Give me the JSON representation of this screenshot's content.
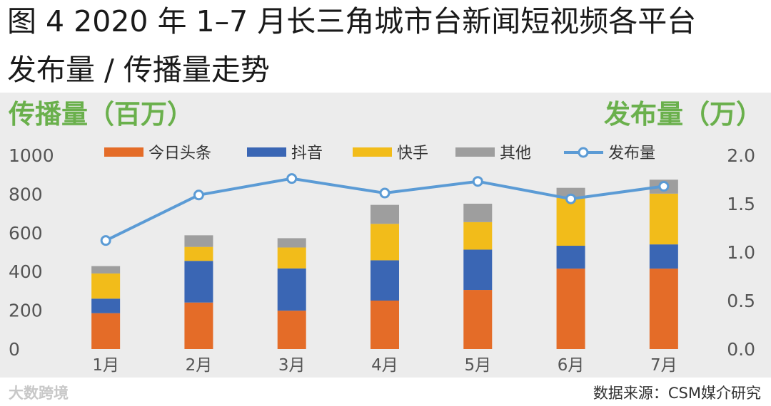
{
  "title_line1": "图 4 2020 年 1–7 月长三角城市台新闻短视频各平台",
  "title_line2": "发布量 / 传播量走势",
  "watermark": "大数跨境",
  "source": "数据来源：CSM媒介研究",
  "chart_data": {
    "type": "bar",
    "stacked": true,
    "categories": [
      "1月",
      "2月",
      "3月",
      "4月",
      "5月",
      "6月",
      "7月"
    ],
    "y_label_left": "传播量（百万）",
    "y_label_right": "发布量（万）",
    "ylim": [
      0,
      1000
    ],
    "ylim_right": [
      0,
      2.0
    ],
    "yticks": [
      "0",
      "200",
      "400",
      "600",
      "800",
      "1000"
    ],
    "yticks_right": [
      "0.0",
      "0.5",
      "1.0",
      "1.5",
      "2.0"
    ],
    "legend_position": "top",
    "series": [
      {
        "name": "今日头条",
        "color": "#e46c28",
        "values": [
          185,
          240,
          198,
          250,
          305,
          415,
          415
        ]
      },
      {
        "name": "抖音",
        "color": "#3a66b4",
        "values": [
          75,
          215,
          218,
          208,
          208,
          118,
          125
        ]
      },
      {
        "name": "快手",
        "color": "#f2bc1a",
        "values": [
          130,
          72,
          108,
          188,
          142,
          247,
          262
        ]
      },
      {
        "name": "其他",
        "color": "#9e9e9e",
        "values": [
          38,
          60,
          48,
          98,
          95,
          52,
          72
        ]
      }
    ],
    "line_series": {
      "name": "发布量",
      "color": "#5b9bd5",
      "axis": "right",
      "values": [
        1.12,
        1.59,
        1.76,
        1.61,
        1.73,
        1.55,
        1.68
      ]
    }
  }
}
